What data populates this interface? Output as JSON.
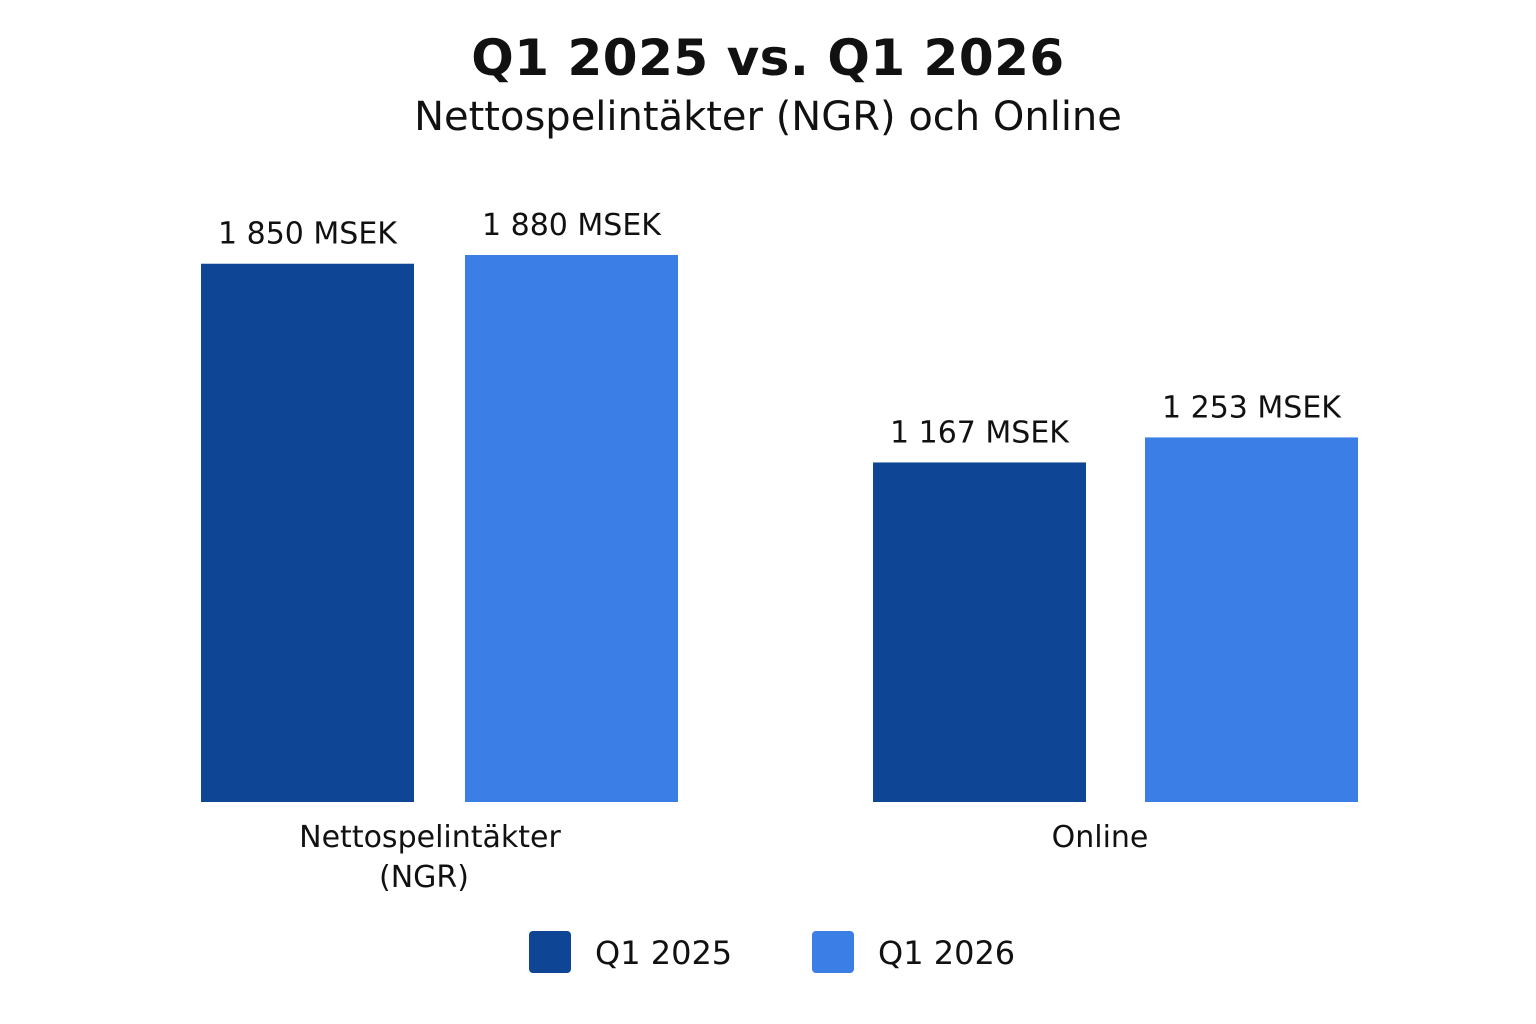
{
  "chart_data": {
    "type": "bar",
    "title": "Q1 2025 vs. Q1 2026",
    "subtitle": "Nettospelintäkter (NGR) och Online",
    "categories": [
      "Nettospelintäkter (NGR)",
      "Online"
    ],
    "category_label_lines": [
      [
        "Nettospelintäkter",
        "(NGR)"
      ],
      [
        "Online"
      ]
    ],
    "series": [
      {
        "name": "Q1 2025",
        "color": "#0e4594",
        "values": [
          1850,
          1167
        ],
        "labels": [
          "1 850 MSEK",
          "1 167 MSEK"
        ]
      },
      {
        "name": "Q1 2026",
        "color": "#3a7ee6",
        "values": [
          1880,
          1253
        ],
        "labels": [
          "1 880 MSEK",
          "1 253 MSEK"
        ]
      }
    ],
    "unit": "MSEK",
    "ylim": [
      0,
      1880
    ],
    "grid": false,
    "legend_position": "bottom-center"
  }
}
